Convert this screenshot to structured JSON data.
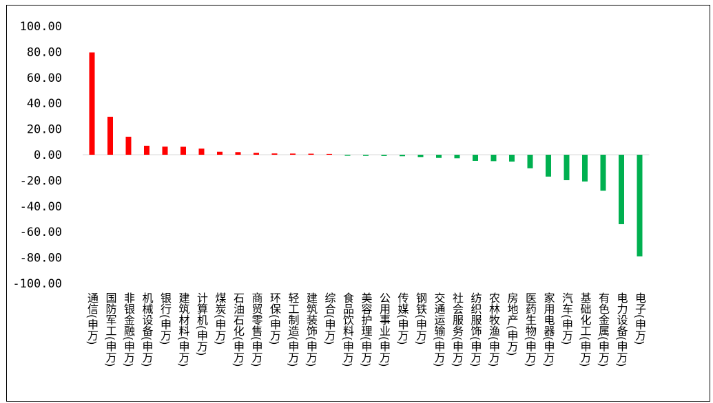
{
  "chart_data": {
    "type": "bar",
    "title": "",
    "xlabel": "",
    "ylabel": "",
    "ylim": [
      -100,
      100
    ],
    "yticks": [
      100,
      80,
      60,
      40,
      20,
      0,
      -20,
      -40,
      -60,
      -80,
      -100
    ],
    "ytick_labels": [
      "100.00",
      "80.00",
      "60.00",
      "40.00",
      "20.00",
      "0.00",
      "-20.00",
      "-40.00",
      "-60.00",
      "-80.00",
      "-100.00"
    ],
    "grid": false,
    "legend": "none",
    "categories": [
      "通信(申万)",
      "国防军工(申万)",
      "非银金融(申万)",
      "机械设备(申万)",
      "银行(申万)",
      "建筑材料(申万)",
      "计算机(申万)",
      "煤炭(申万)",
      "石油石化(申万)",
      "商贸零售(申万)",
      "环保(申万)",
      "轻工制造(申万)",
      "建筑装饰(申万)",
      "综合(申万)",
      "食品饮料(申万)",
      "美容护理(申万)",
      "公用事业(申万)",
      "传媒(申万)",
      "钢铁(申万)",
      "交通运输(申万)",
      "社会服务(申万)",
      "纺织服饰(申万)",
      "农林牧渔(申万)",
      "房地产(申万)",
      "医药生物(申万)",
      "家用电器(申万)",
      "汽车(申万)",
      "基础化工(申万)",
      "有色金属(申万)",
      "电力设备(申万)",
      "电子(申万)"
    ],
    "values": [
      79.5,
      29.5,
      14.0,
      7.0,
      6.3,
      6.2,
      4.8,
      2.3,
      2.0,
      1.5,
      1.0,
      0.9,
      0.8,
      0.6,
      -0.8,
      -0.9,
      -1.0,
      -1.2,
      -1.8,
      -2.5,
      -2.8,
      -4.8,
      -5.0,
      -5.3,
      -10.5,
      -17.0,
      -19.8,
      -20.8,
      -28.0,
      -54.0,
      -79.0
    ],
    "colors": {
      "positive": "#ff0000",
      "negative": "#00b050",
      "axis": "#d9d9d9"
    }
  }
}
